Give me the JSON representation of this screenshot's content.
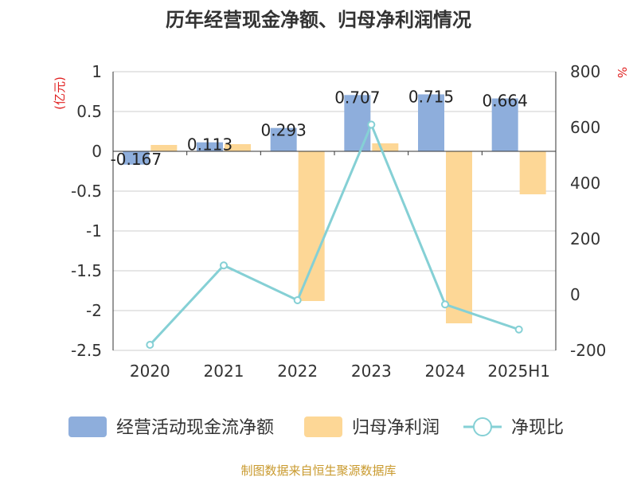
{
  "chart_data": {
    "type": "bar",
    "title": "历年经营现金净额、归母净利润情况",
    "categories": [
      "2020",
      "2021",
      "2022",
      "2023",
      "2024",
      "2025H1"
    ],
    "y_left": {
      "unit": "(亿元)",
      "ylim": [
        -2.5,
        1
      ],
      "ticks": [
        1,
        0.5,
        0,
        -0.5,
        -1,
        -1.5,
        -2,
        -2.5
      ]
    },
    "y_right": {
      "unit": "%",
      "ylim": [
        -200,
        800
      ],
      "ticks": [
        800,
        600,
        400,
        200,
        0,
        -200
      ]
    },
    "series": [
      {
        "name": "经营活动现金流净额",
        "kind": "bar",
        "axis": "left",
        "color": "#8eaedc",
        "values": [
          -0.167,
          0.113,
          0.293,
          0.707,
          0.715,
          0.664
        ],
        "labels": [
          "-0.167",
          "0.113",
          "0.293",
          "0.707",
          "0.715",
          "0.664"
        ]
      },
      {
        "name": "归母净利润",
        "kind": "bar",
        "axis": "left",
        "color": "#fdd796",
        "values": [
          0.08,
          0.09,
          -1.88,
          0.1,
          -2.16,
          -0.54
        ]
      },
      {
        "name": "净现比",
        "kind": "line",
        "axis": "right",
        "color": "#85d0d5",
        "values": [
          -180,
          105,
          -20,
          610,
          -35,
          -125
        ]
      }
    ],
    "legend_position": "bottom",
    "grid": true
  },
  "footer": {
    "source": "制图数据来自恒生聚源数据库"
  }
}
